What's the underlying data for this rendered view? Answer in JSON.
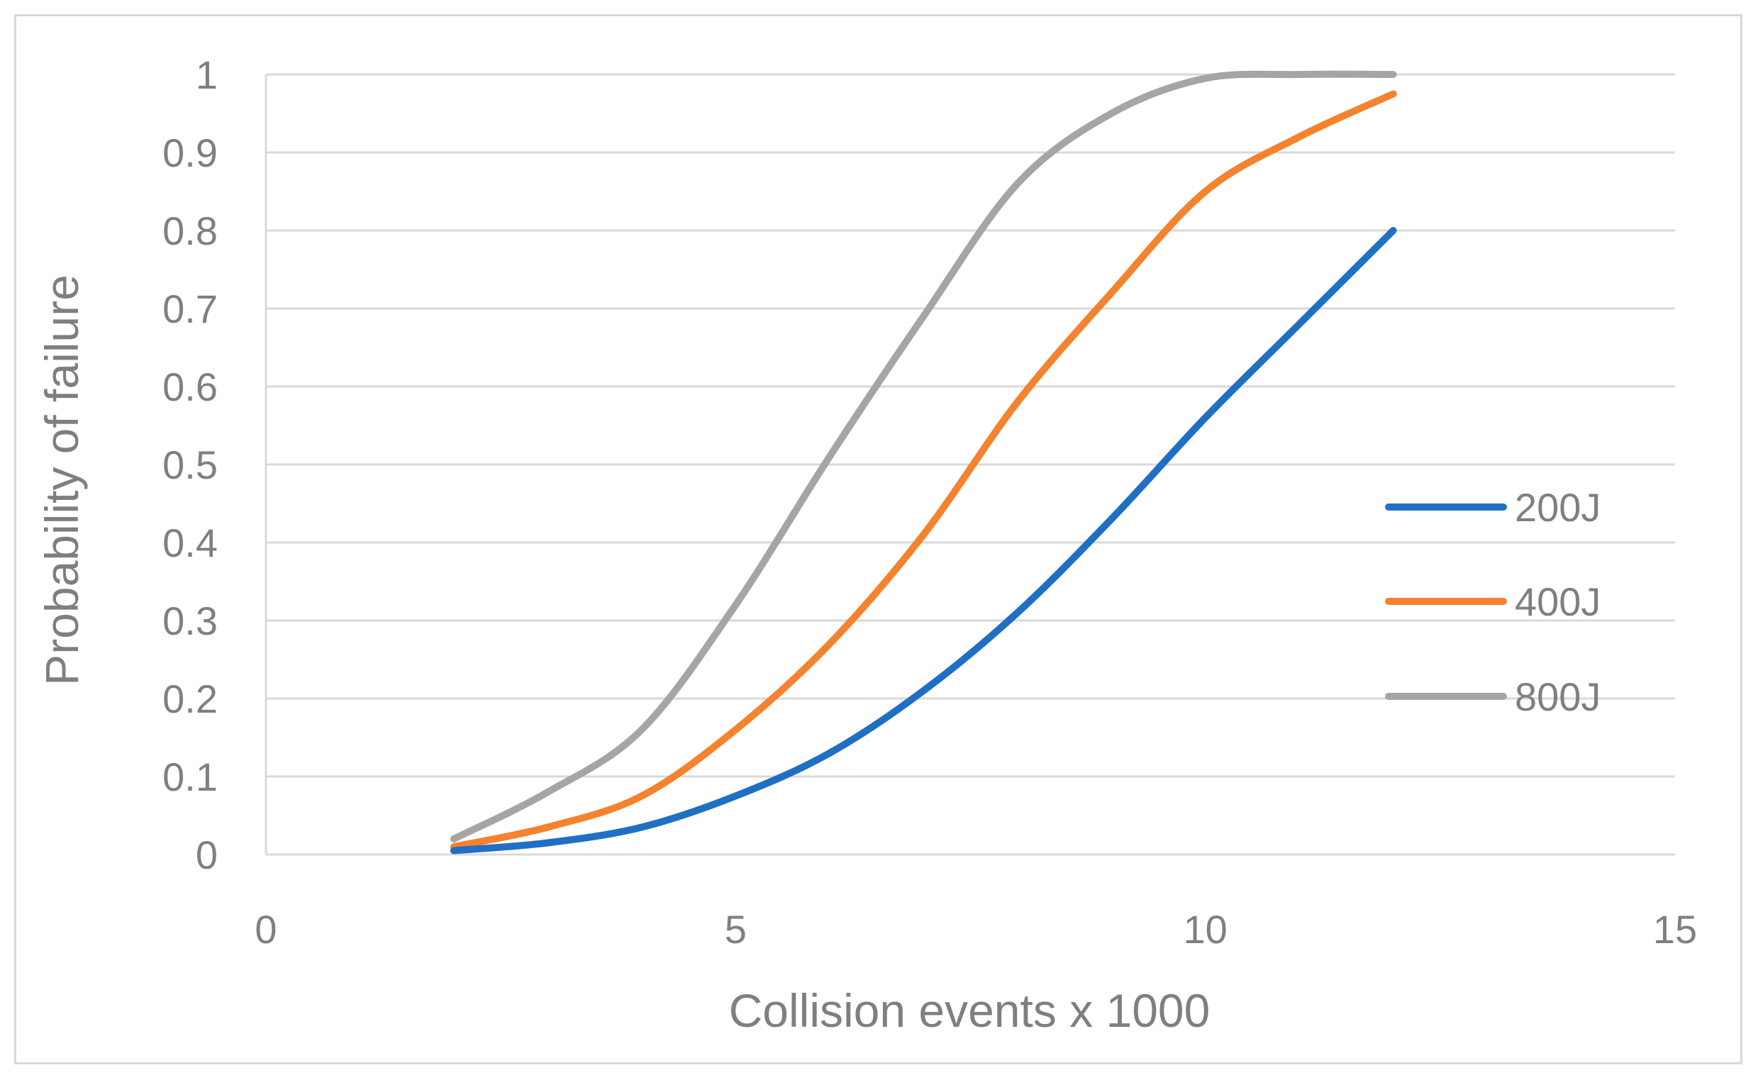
{
  "chart_data": {
    "type": "line",
    "title": "",
    "xlabel": "Collision events x 1000",
    "ylabel": "Probability of failure",
    "xlim": [
      0,
      15
    ],
    "ylim": [
      0,
      1
    ],
    "x_ticks": [
      "0",
      "5",
      "10",
      "15"
    ],
    "y_ticks": [
      "0",
      "0.1",
      "0.2",
      "0.3",
      "0.4",
      "0.5",
      "0.6",
      "0.7",
      "0.8",
      "0.9",
      "1"
    ],
    "grid": "horizontal",
    "legend_position": "right",
    "x": [
      2,
      3,
      4,
      5,
      6,
      7,
      8,
      9,
      10,
      11,
      12
    ],
    "series": [
      {
        "name": "200J",
        "color": "#1f6fc5",
        "values": [
          0.005,
          0.015,
          0.035,
          0.075,
          0.13,
          0.21,
          0.31,
          0.43,
          0.56,
          0.68,
          0.8
        ]
      },
      {
        "name": "400J",
        "color": "#f5822d",
        "values": [
          0.01,
          0.035,
          0.075,
          0.16,
          0.27,
          0.41,
          0.58,
          0.72,
          0.85,
          0.92,
          0.975
        ]
      },
      {
        "name": "800J",
        "color": "#a5a5a5",
        "values": [
          0.02,
          0.08,
          0.16,
          0.32,
          0.51,
          0.69,
          0.86,
          0.95,
          0.995,
          1.0,
          1.0
        ]
      }
    ]
  }
}
